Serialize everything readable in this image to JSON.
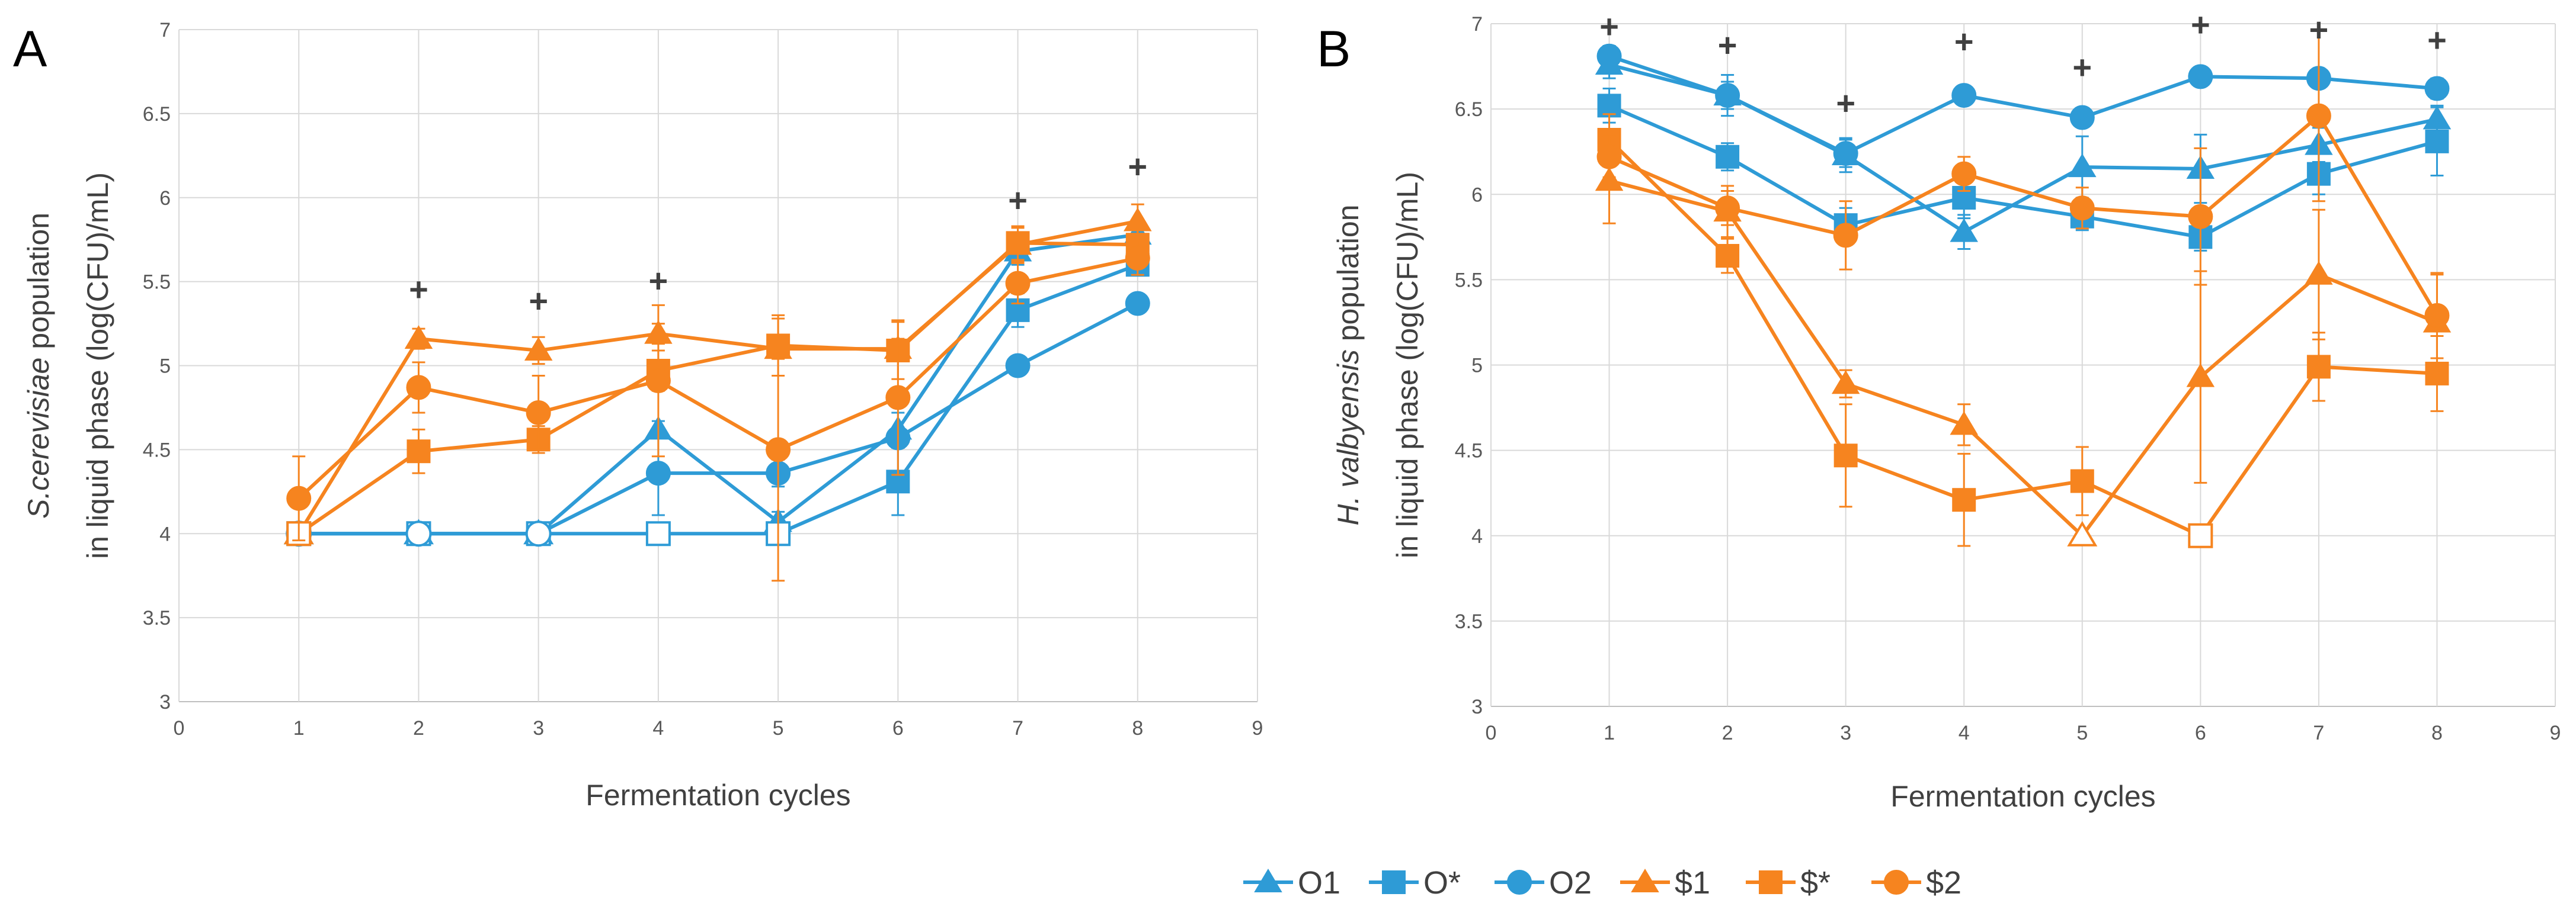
{
  "colors": {
    "blue": "#2e9bd6",
    "orange": "#f6841f",
    "grid": "#d9d9d9",
    "axis": "#bfbfbf",
    "errorbar": "#7f7f7f"
  },
  "legend": {
    "items": [
      {
        "label": "O1",
        "color": "#2e9bd6",
        "marker": "triangle"
      },
      {
        "label": "O*",
        "color": "#2e9bd6",
        "marker": "square"
      },
      {
        "label": "O2",
        "color": "#2e9bd6",
        "marker": "circle"
      },
      {
        "label": "$1",
        "color": "#f6841f",
        "marker": "triangle"
      },
      {
        "label": "$*",
        "color": "#f6841f",
        "marker": "square"
      },
      {
        "label": "$2",
        "color": "#f6841f",
        "marker": "circle"
      }
    ]
  },
  "chart_data": [
    {
      "type": "line",
      "panel": "A",
      "xlabel": "Fermentation cycles",
      "ylabel_italic": "S.cerevisiae",
      "ylabel_rest": " population",
      "ylabel_line2": "in liquid phase  (log(CFU)/mL)",
      "xlim": [
        0,
        9
      ],
      "ylim": [
        3,
        7
      ],
      "xticks": [
        "0",
        "1",
        "2",
        "3",
        "4",
        "5",
        "6",
        "7",
        "8",
        "9"
      ],
      "yticks": [
        "3",
        "3.5",
        "4",
        "4.5",
        "5",
        "5.5",
        "6",
        "6.5",
        "7"
      ],
      "significance": [
        {
          "x": 2,
          "y": 5.45,
          "label": "+"
        },
        {
          "x": 3,
          "y": 5.38,
          "label": "+"
        },
        {
          "x": 4,
          "y": 5.5,
          "label": "+"
        },
        {
          "x": 7,
          "y": 5.98,
          "label": "+"
        },
        {
          "x": 8,
          "y": 6.18,
          "label": "+"
        }
      ],
      "series": [
        {
          "name": "O1",
          "color": "#2e9bd6",
          "marker": "triangle",
          "x": [
            1,
            2,
            3,
            4,
            5,
            6,
            7,
            8
          ],
          "y": [
            4.0,
            4.0,
            4.0,
            4.62,
            4.07,
            4.62,
            5.68,
            5.78
          ],
          "err": [
            0,
            0,
            0,
            0.05,
            0.06,
            0.1,
            0.08,
            0.06
          ],
          "hollow": [
            true,
            true,
            true,
            false,
            false,
            false,
            false,
            false
          ]
        },
        {
          "name": "O*",
          "color": "#2e9bd6",
          "marker": "square",
          "x": [
            1,
            2,
            3,
            4,
            5,
            6,
            7,
            8
          ],
          "y": [
            4.0,
            4.0,
            4.0,
            4.0,
            4.0,
            4.31,
            5.33,
            5.6
          ],
          "err": [
            0,
            0,
            0,
            0,
            0,
            0.2,
            0.1,
            0.06
          ],
          "hollow": [
            true,
            true,
            true,
            true,
            true,
            false,
            false,
            false
          ]
        },
        {
          "name": "O2",
          "color": "#2e9bd6",
          "marker": "circle",
          "x": [
            1,
            2,
            3,
            4,
            5,
            6,
            7,
            8
          ],
          "y": [
            4.0,
            4.0,
            4.0,
            4.36,
            4.36,
            4.57,
            5.0,
            5.37
          ],
          "err": [
            0,
            0,
            0,
            0.25,
            0.08,
            0.06,
            0.04,
            0.04
          ],
          "hollow": [
            true,
            true,
            true,
            false,
            false,
            false,
            false,
            false
          ]
        },
        {
          "name": "$1",
          "color": "#f6841f",
          "marker": "triangle",
          "x": [
            1,
            2,
            3,
            4,
            5,
            6,
            7,
            8
          ],
          "y": [
            4.0,
            5.16,
            5.09,
            5.19,
            5.1,
            5.1,
            5.72,
            5.86
          ],
          "err": [
            0,
            0.06,
            0.08,
            0.06,
            0.06,
            0.06,
            0.1,
            0.1
          ],
          "hollow": [
            true,
            false,
            false,
            false,
            false,
            false,
            false,
            false
          ]
        },
        {
          "name": "$*",
          "color": "#f6841f",
          "marker": "square",
          "x": [
            1,
            2,
            3,
            4,
            5,
            6,
            7,
            8
          ],
          "y": [
            4.0,
            4.49,
            4.56,
            4.97,
            5.12,
            5.09,
            5.73,
            5.72
          ],
          "err": [
            0,
            0.13,
            0.08,
            0.12,
            0.18,
            0.17,
            0.1,
            0.1
          ],
          "hollow": [
            true,
            false,
            false,
            false,
            false,
            false,
            false,
            false
          ]
        },
        {
          "name": "$2",
          "color": "#f6841f",
          "marker": "circle",
          "x": [
            1,
            2,
            3,
            4,
            5,
            6,
            7,
            8
          ],
          "y": [
            4.21,
            4.87,
            4.72,
            4.91,
            4.5,
            4.81,
            5.49,
            5.64
          ],
          "err": [
            0.25,
            0.15,
            0.22,
            0.45,
            0.78,
            0.46,
            0.12,
            0.1
          ],
          "hollow": [
            false,
            false,
            false,
            false,
            false,
            false,
            false,
            false
          ]
        }
      ]
    },
    {
      "type": "line",
      "panel": "B",
      "xlabel": "Fermentation cycles",
      "ylabel_italic": "H. valbyensis",
      "ylabel_rest": " population",
      "ylabel_line2": "in liquid phase  (log(CFU)/mL)",
      "xlim": [
        0,
        9
      ],
      "ylim": [
        3,
        7
      ],
      "xticks": [
        "0",
        "1",
        "2",
        "3",
        "4",
        "5",
        "6",
        "7",
        "8",
        "9"
      ],
      "yticks": [
        "3",
        "3.5",
        "4",
        "4.5",
        "5",
        "5.5",
        "6",
        "6.5",
        "7"
      ],
      "significance": [
        {
          "x": 1,
          "y": 6.98,
          "label": "+"
        },
        {
          "x": 2,
          "y": 6.87,
          "label": "+"
        },
        {
          "x": 3,
          "y": 6.53,
          "label": "+"
        },
        {
          "x": 4,
          "y": 6.89,
          "label": "+"
        },
        {
          "x": 5,
          "y": 6.74,
          "label": "+"
        },
        {
          "x": 6,
          "y": 6.99,
          "label": "+"
        },
        {
          "x": 7,
          "y": 6.96,
          "label": "+"
        },
        {
          "x": 8,
          "y": 6.9,
          "label": "+"
        }
      ],
      "series": [
        {
          "name": "O1",
          "color": "#2e9bd6",
          "marker": "triangle",
          "x": [
            1,
            2,
            3,
            4,
            5,
            6,
            7,
            8
          ],
          "y": [
            6.76,
            6.58,
            6.23,
            5.78,
            6.16,
            6.15,
            6.29,
            6.44
          ],
          "err": [
            0.08,
            0.12,
            0.1,
            0.1,
            0.18,
            0.2,
            0.1,
            0.08
          ],
          "hollow": [
            false,
            false,
            false,
            false,
            false,
            false,
            false,
            false
          ]
        },
        {
          "name": "O*",
          "color": "#2e9bd6",
          "marker": "square",
          "x": [
            1,
            2,
            3,
            4,
            5,
            6,
            7,
            8
          ],
          "y": [
            6.52,
            6.22,
            5.82,
            5.98,
            5.87,
            5.75,
            6.12,
            6.31
          ],
          "err": [
            0.1,
            0.08,
            0.1,
            0.12,
            0.08,
            0.08,
            0.12,
            0.2
          ],
          "hollow": [
            false,
            false,
            false,
            false,
            false,
            false,
            false,
            false
          ]
        },
        {
          "name": "O2",
          "color": "#2e9bd6",
          "marker": "circle",
          "x": [
            1,
            2,
            3,
            4,
            5,
            6,
            7,
            8
          ],
          "y": [
            6.81,
            6.58,
            6.24,
            6.58,
            6.45,
            6.69,
            6.68,
            6.62
          ],
          "err": [
            0.06,
            0.08,
            0.08,
            0.04,
            0.04,
            0.04,
            0.04,
            0.06
          ],
          "hollow": [
            false,
            false,
            false,
            false,
            false,
            false,
            false,
            false
          ]
        },
        {
          "name": "$1",
          "color": "#f6841f",
          "marker": "triangle",
          "x": [
            1,
            2,
            3,
            4,
            5,
            6,
            7,
            8
          ],
          "y": [
            6.08,
            5.9,
            4.89,
            4.65,
            4.0,
            4.93,
            5.53,
            5.25
          ],
          "err": [
            0.25,
            0.15,
            0.08,
            0.12,
            0,
            0.62,
            0.38,
            0.28
          ],
          "hollow": [
            false,
            false,
            false,
            false,
            true,
            false,
            false,
            false
          ]
        },
        {
          "name": "$*",
          "color": "#f6841f",
          "marker": "square",
          "x": [
            1,
            2,
            3,
            4,
            5,
            6,
            7,
            8
          ],
          "y": [
            6.32,
            5.64,
            4.47,
            4.21,
            4.32,
            4.0,
            4.99,
            4.95
          ],
          "err": [
            0.15,
            0.1,
            0.3,
            0.27,
            0.2,
            0,
            0.2,
            0.22
          ],
          "hollow": [
            false,
            false,
            false,
            false,
            false,
            true,
            false,
            false
          ]
        },
        {
          "name": "$2",
          "color": "#f6841f",
          "marker": "circle",
          "x": [
            1,
            2,
            3,
            4,
            5,
            6,
            7,
            8
          ],
          "y": [
            6.22,
            5.92,
            5.76,
            6.12,
            5.92,
            5.87,
            6.46,
            5.29
          ],
          "err": [
            0.12,
            0.1,
            0.2,
            0.1,
            0.12,
            0.4,
            0.5,
            0.25
          ],
          "hollow": [
            false,
            false,
            false,
            false,
            false,
            false,
            false,
            false
          ]
        }
      ]
    }
  ]
}
